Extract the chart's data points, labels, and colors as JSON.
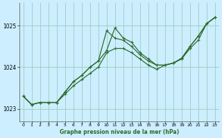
{
  "title": "Graphe pression niveau de la mer (hPa)",
  "bg_color": "#cceeff",
  "grid_color": "#99ccbb",
  "line_color": "#2d6a2d",
  "marker_color": "#2d6a2d",
  "xlim": [
    -0.5,
    23.5
  ],
  "ylim": [
    1022.7,
    1025.55
  ],
  "yticks": [
    1023,
    1024,
    1025
  ],
  "xticks": [
    0,
    1,
    2,
    3,
    4,
    5,
    6,
    7,
    8,
    9,
    10,
    11,
    12,
    13,
    14,
    15,
    16,
    17,
    18,
    19,
    20,
    21,
    22,
    23
  ],
  "series": [
    {
      "x": [
        0,
        1,
        2,
        3,
        4,
        5,
        6,
        7,
        8,
        9,
        10,
        11,
        12,
        13,
        14,
        15,
        16,
        17,
        18,
        19,
        20,
        21,
        22,
        23
      ],
      "y": [
        1023.3,
        1023.1,
        1023.15,
        1023.15,
        1023.15,
        1023.35,
        1023.55,
        1023.7,
        1023.85,
        1024.0,
        1024.35,
        1024.45,
        1024.45,
        1024.35,
        1024.2,
        1024.05,
        1023.95,
        1024.05,
        1024.1,
        1024.2,
        1024.45,
        1024.65,
        1025.05,
        1025.2
      ]
    },
    {
      "x": [
        0,
        1,
        2,
        3,
        4,
        5,
        6,
        7,
        8,
        9,
        10,
        11,
        12,
        13,
        14,
        15,
        16,
        17,
        18,
        19,
        20,
        21,
        22,
        23
      ],
      "y": [
        1023.3,
        1023.1,
        1023.15,
        1023.15,
        1023.15,
        1023.4,
        1023.65,
        1023.8,
        1024.0,
        1024.15,
        1024.88,
        1024.7,
        1024.65,
        1024.5,
        1024.3,
        1024.15,
        1024.05,
        1024.05,
        1024.1,
        1024.2,
        1024.5,
        1024.75,
        1025.05,
        1025.2
      ]
    },
    {
      "x": [
        0,
        1,
        2,
        3,
        4,
        5,
        6,
        7,
        8,
        9,
        10,
        11,
        12,
        13,
        14,
        15,
        16,
        17,
        18,
        19,
        20,
        21,
        22,
        23
      ],
      "y": [
        1023.3,
        1023.1,
        1023.15,
        1023.15,
        1023.15,
        1023.4,
        1023.65,
        1023.8,
        1024.0,
        1024.15,
        1024.4,
        1024.95,
        1024.7,
        1024.6,
        1024.35,
        1024.2,
        1024.05,
        1024.05,
        1024.1,
        1024.22,
        1024.5,
        1024.75,
        1025.05,
        1025.2
      ]
    }
  ]
}
